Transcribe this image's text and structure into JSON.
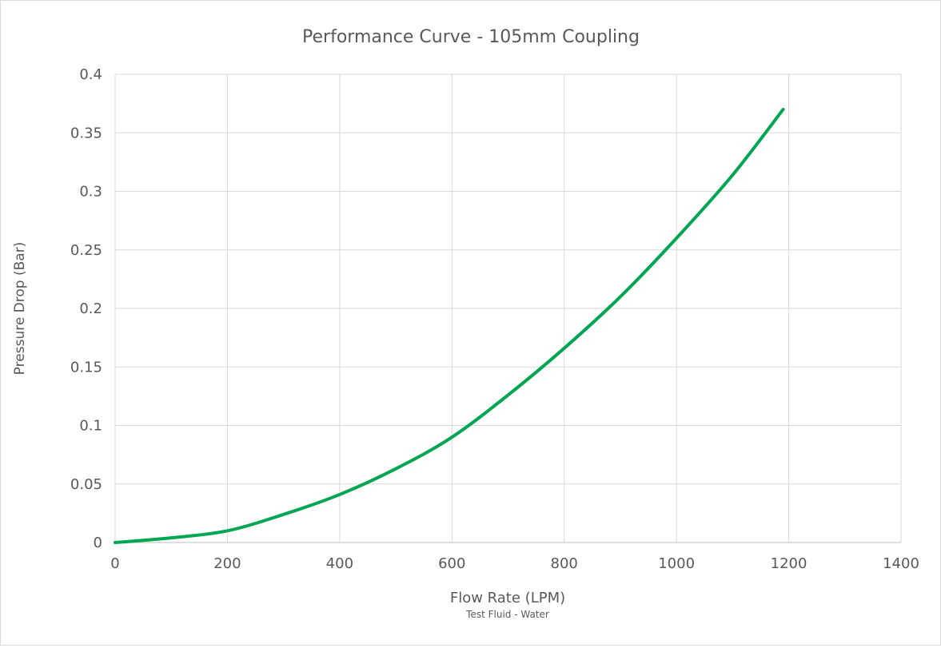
{
  "chart_data": {
    "type": "line",
    "title": "Performance Curve - 105mm Coupling",
    "xlabel": "Flow Rate (LPM)",
    "xlabel_note": "Test Fluid - Water",
    "ylabel": "Pressure Drop (Bar)",
    "xlim": [
      0,
      1400
    ],
    "ylim": [
      0,
      0.4
    ],
    "x_ticks": [
      "0",
      "200",
      "400",
      "600",
      "800",
      "1000",
      "1200",
      "1400"
    ],
    "y_ticks": [
      "0",
      "0.05",
      "0.1",
      "0.15",
      "0.2",
      "0.25",
      "0.3",
      "0.35",
      "0.4"
    ],
    "grid": true,
    "legend": "none",
    "series": [
      {
        "color": "#00a651",
        "points": [
          {
            "x": 0,
            "y": 0
          },
          {
            "x": 100,
            "y": 0.004
          },
          {
            "x": 200,
            "y": 0.01
          },
          {
            "x": 300,
            "y": 0.024
          },
          {
            "x": 400,
            "y": 0.041
          },
          {
            "x": 500,
            "y": 0.063
          },
          {
            "x": 600,
            "y": 0.09
          },
          {
            "x": 700,
            "y": 0.126
          },
          {
            "x": 800,
            "y": 0.166
          },
          {
            "x": 900,
            "y": 0.21
          },
          {
            "x": 1000,
            "y": 0.26
          },
          {
            "x": 1100,
            "y": 0.314
          },
          {
            "x": 1190,
            "y": 0.37
          }
        ]
      }
    ]
  },
  "colors": {
    "series": "#00a651",
    "grid": "#d9d9d9",
    "text": "#595959",
    "frame": "#d9d9d9"
  }
}
